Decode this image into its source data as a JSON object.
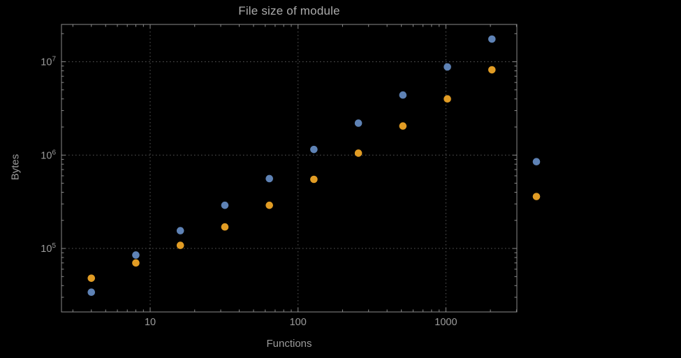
{
  "chart_data": {
    "type": "scatter",
    "title": "File size of module",
    "xlabel": "Functions",
    "ylabel": "Bytes",
    "x_scale": "log",
    "y_scale": "log",
    "x_ticks": [
      10,
      100,
      1000
    ],
    "y_ticks": [
      100000,
      1000000,
      10000000
    ],
    "x_range_log": [
      0.4,
      3.48
    ],
    "y_range_log": [
      4.32,
      7.4
    ],
    "grid": "dotted-major",
    "legend": "none",
    "series": [
      {
        "name": "series-1-blue",
        "color": "#5e82b5",
        "x": [
          4,
          8,
          16,
          32,
          64,
          128,
          256,
          512,
          1024,
          2048,
          4096
        ],
        "y": [
          34000,
          85000,
          155000,
          290000,
          560000,
          1150000,
          2200000,
          4400000,
          8800000,
          17500000,
          850000
        ]
      },
      {
        "name": "series-2-orange",
        "color": "#e19c24",
        "x": [
          4,
          8,
          16,
          32,
          64,
          128,
          256,
          512,
          1024,
          2048,
          4096
        ],
        "y": [
          48000,
          70000,
          108000,
          170000,
          290000,
          550000,
          1050000,
          2050000,
          4000000,
          8200000,
          360000
        ]
      }
    ]
  },
  "styles": {
    "background": "#000000",
    "frame_color": "#8a8a8a",
    "grid_color": "#5b5b5b",
    "tick_color": "#8a8a8a",
    "text_color": "#9b9b9b",
    "title_color": "#ababab"
  }
}
